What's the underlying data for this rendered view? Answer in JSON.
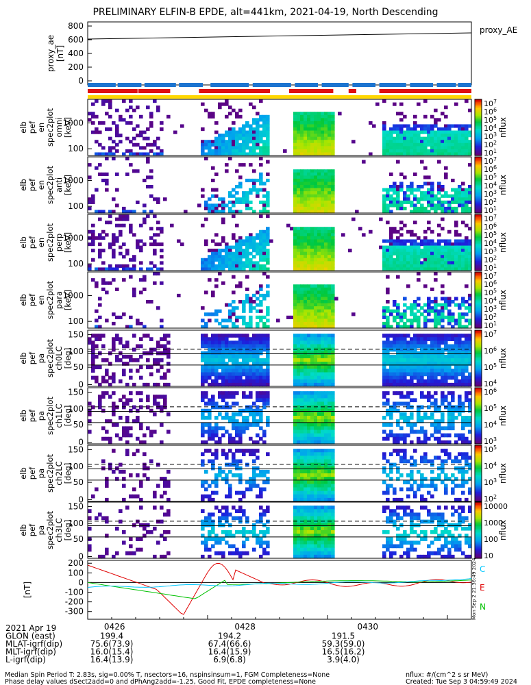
{
  "title": "PRELIMINARY ELFIN-B EPDE, alt=441km, 2021-04-19, North Descending",
  "chart_data": [
    {
      "type": "line",
      "name": "proxy_ae",
      "ylabel": [
        "proxy_ae",
        "[nT]"
      ],
      "ylim": [
        -60,
        860
      ],
      "yticks": [
        0,
        200,
        400,
        600,
        800
      ],
      "legend": "proxy_AE",
      "series": [
        {
          "name": "proxy_AE",
          "color": "#000000",
          "x": [
            0,
            1
          ],
          "y": [
            610,
            700
          ]
        }
      ]
    },
    {
      "type": "heatmap",
      "name": "elb_pef_en_spec2plot_omni",
      "ylabel": [
        "elb",
        "pef",
        "en",
        "spec2plot",
        "omni",
        "[keV]"
      ],
      "yticks": [
        "1000",
        "100"
      ],
      "cbar_label": "nflux",
      "cbar_ticks": [
        "10^7",
        "10^6",
        "10^5",
        "10^4",
        "10^3",
        "10^2",
        "10^1"
      ]
    },
    {
      "type": "heatmap",
      "name": "elb_pef_en_spec2plot_anti",
      "ylabel": [
        "elb",
        "pef",
        "en",
        "spec2plot",
        "anti",
        "[keV]"
      ],
      "yticks": [
        "1000",
        "100"
      ],
      "cbar_label": "nflux",
      "cbar_ticks": [
        "10^7",
        "10^6",
        "10^5",
        "10^4",
        "10^3",
        "10^2",
        "10^1"
      ]
    },
    {
      "type": "heatmap",
      "name": "elb_pef_en_spec2plot_perp",
      "ylabel": [
        "elb",
        "pef",
        "en",
        "spec2plot",
        "perp",
        "[keV]"
      ],
      "yticks": [
        "1000",
        "100"
      ],
      "cbar_label": "nflux",
      "cbar_ticks": [
        "10^7",
        "10^6",
        "10^5",
        "10^4",
        "10^3",
        "10^2",
        "10^1"
      ]
    },
    {
      "type": "heatmap",
      "name": "elb_pef_en_spec2plot_para",
      "ylabel": [
        "elb",
        "pef",
        "en",
        "spec2plot",
        "para",
        "[keV]"
      ],
      "yticks": [
        "1000",
        "100"
      ],
      "cbar_label": "nflux",
      "cbar_ticks": [
        "10^7",
        "10^6",
        "10^5",
        "10^4",
        "10^3",
        "10^2",
        "10^1"
      ]
    },
    {
      "type": "heatmap",
      "name": "elb_pef_pa_spec2plot_ch0LC",
      "ylabel": [
        "elb",
        "pef",
        "pa",
        "spec2plot",
        "ch0LC",
        "[deg]"
      ],
      "yticks": [
        "150",
        "100",
        "50",
        "0"
      ],
      "cbar_label": "nflux",
      "cbar_ticks": [
        "10^7",
        "10^6",
        "10^5",
        "10^4"
      ]
    },
    {
      "type": "heatmap",
      "name": "elb_pef_pa_spec2plot_ch1LC",
      "ylabel": [
        "elb",
        "pef",
        "pa",
        "spec2plot",
        "ch1LC",
        "[deg]"
      ],
      "yticks": [
        "150",
        "100",
        "50",
        "0"
      ],
      "cbar_label": "nflux",
      "cbar_ticks": [
        "10^6",
        "10^5",
        "10^4",
        "10^3"
      ]
    },
    {
      "type": "heatmap",
      "name": "elb_pef_pa_spec2plot_ch2LC",
      "ylabel": [
        "elb",
        "pef",
        "pa",
        "spec2plot",
        "ch2LC",
        "[deg]"
      ],
      "yticks": [
        "150",
        "100",
        "50",
        "0"
      ],
      "cbar_label": "nflux",
      "cbar_ticks": [
        "10^5",
        "10^4",
        "10^3",
        "10^2"
      ]
    },
    {
      "type": "heatmap",
      "name": "elb_pef_pa_spec2plot_ch3LC",
      "ylabel": [
        "elb",
        "pef",
        "pa",
        "spec2plot",
        "ch3LC",
        "[deg]"
      ],
      "yticks": [
        "150",
        "100",
        "50",
        "0"
      ],
      "cbar_label": "nflux",
      "cbar_ticks": [
        "10000",
        "1000",
        "100",
        "10"
      ]
    },
    {
      "type": "line",
      "name": "mag_residual",
      "ylabel": [
        "[nT]"
      ],
      "ylim": [
        -380,
        230
      ],
      "yticks": [
        200,
        100,
        0,
        -100,
        -200,
        -300
      ],
      "legend": [
        "C",
        "E",
        "N"
      ],
      "series": [
        {
          "name": "C",
          "color": "#00c8ff"
        },
        {
          "name": "E",
          "color": "#e00000"
        },
        {
          "name": "N",
          "color": "#00c000"
        }
      ]
    }
  ],
  "colors": {
    "blue": "#1c74d0",
    "red": "#e01010",
    "yellow": "#ffd700"
  },
  "side_stamp": "Mon Sep  2 21:36:49 2024",
  "axis_times": [
    "0426",
    "0428",
    "0430"
  ],
  "footer_rows": [
    {
      "label": "2021 Apr 19",
      "values": [
        "0426",
        "0428",
        "0430"
      ]
    },
    {
      "label": "GLON (east)",
      "values": [
        "199.4",
        "194.2",
        "191.5"
      ]
    },
    {
      "label": "MLAT-igrf(dip)",
      "values": [
        "75.6(73.9)",
        "67.4(66.6)",
        "59.3(59.0)"
      ]
    },
    {
      "label": "MLT-igrf(dip)",
      "values": [
        "16.0(15.4)",
        "16.4(15.9)",
        "16.5(16.2)"
      ]
    },
    {
      "label": "L-igrf(dip)",
      "values": [
        "16.4(13.9)",
        "6.9(6.8)",
        "3.9(4.0)"
      ]
    }
  ],
  "bottom_left": [
    "Median Spin Period T: 2.83s, sig=0.00% T, nsectors=16, nspinsinsum=1, FGM Completeness=None",
    "Phase delay values dSect2add=0 and dPhAng2add=-1.25, Good Fit, EPDE completeness=None"
  ],
  "bottom_right": [
    "nflux: #/(cm^2 s sr MeV)",
    "Created: Tue Sep  3 04:59:49 2024"
  ]
}
